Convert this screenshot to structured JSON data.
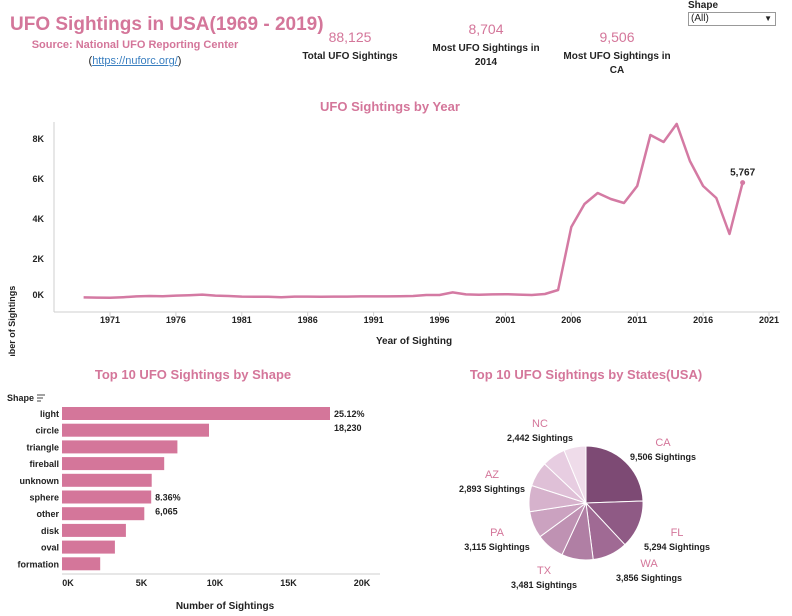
{
  "header": {
    "title": "UFO Sightings in USA(1969 - 2019)",
    "source": "Source: National UFO Reporting Center",
    "link_open": "(",
    "link_text": "https://nuforc.org/",
    "link_close": ")"
  },
  "kpis": [
    {
      "value": "88,125",
      "label": "Total UFO Sightings"
    },
    {
      "value": "8,704",
      "label": "Most UFO Sightings in 2014"
    },
    {
      "value": "9,506",
      "label": "Most UFO Sightings in CA"
    }
  ],
  "filter": {
    "label": "Shape",
    "selected": "(All)"
  },
  "colors": {
    "accent": "#d4769a",
    "bar": "#d4769a",
    "line": "#d47aa3",
    "link": "#3a7fc0"
  },
  "chart_data": [
    {
      "type": "line",
      "title": "UFO Sightings by Year",
      "xlabel": "Year of Sighting",
      "ylabel": "Number of Sightings",
      "x": [
        1969,
        1970,
        1971,
        1972,
        1973,
        1974,
        1975,
        1976,
        1977,
        1978,
        1979,
        1980,
        1981,
        1982,
        1983,
        1984,
        1985,
        1986,
        1987,
        1988,
        1989,
        1990,
        1991,
        1992,
        1993,
        1994,
        1995,
        1996,
        1997,
        1998,
        1999,
        2000,
        2001,
        2002,
        2003,
        2004,
        2005,
        2006,
        2007,
        2008,
        2009,
        2010,
        2011,
        2012,
        2013,
        2014,
        2015,
        2016,
        2017,
        2018,
        2019
      ],
      "values": [
        30,
        20,
        10,
        40,
        80,
        100,
        90,
        120,
        140,
        170,
        120,
        100,
        70,
        60,
        60,
        40,
        70,
        70,
        60,
        70,
        70,
        80,
        80,
        80,
        90,
        100,
        150,
        150,
        280,
        180,
        160,
        180,
        190,
        170,
        150,
        200,
        400,
        3550,
        4700,
        5250,
        4950,
        4750,
        5600,
        8150,
        7800,
        8704,
        6850,
        5600,
        5000,
        3200,
        5767
      ],
      "xticks": [
        "1971",
        "1976",
        "1981",
        "1986",
        "1991",
        "1996",
        "2001",
        "2006",
        "2011",
        "2016",
        "2021"
      ],
      "yticks": [
        "0K",
        "2K",
        "4K",
        "6K",
        "8K"
      ],
      "xlim": [
        1967,
        2021
      ],
      "ylim": [
        0,
        8800
      ],
      "annotation": "5,767"
    },
    {
      "type": "bar",
      "title": "Top 10 UFO Sightings by Shape",
      "category_header": "Shape",
      "xlabel": "Number of Sightings",
      "categories": [
        "light",
        "circle",
        "triangle",
        "fireball",
        "unknown",
        "sphere",
        "other",
        "disk",
        "oval",
        "formation"
      ],
      "values": [
        18230,
        10000,
        7850,
        6950,
        6100,
        6065,
        5600,
        4350,
        3600,
        2600
      ],
      "xticks": [
        "0K",
        "5K",
        "10K",
        "15K",
        "20K"
      ],
      "xlim": [
        0,
        20000
      ],
      "labels": [
        {
          "pct": "25.12%",
          "count": "18,230"
        },
        {
          "pct": "8.36%",
          "count": "6,065"
        }
      ]
    },
    {
      "type": "pie",
      "title": "Top 10 UFO Sightings by States(USA)",
      "slices": [
        {
          "state": "CA",
          "value": 9506,
          "label": "9,506 Sightings",
          "color": "#7d4a74"
        },
        {
          "state": "FL",
          "value": 5294,
          "label": "5,294 Sightings",
          "color": "#8f5a85"
        },
        {
          "state": "WA",
          "value": 3856,
          "label": "3,856 Sightings",
          "color": "#a06a94"
        },
        {
          "state": "TX",
          "value": 3481,
          "label": "3,481 Sightings",
          "color": "#b07fa4"
        },
        {
          "state": "PA",
          "value": 3115,
          "label": "3,115 Sightings",
          "color": "#bf92b3"
        },
        {
          "state": "",
          "value": 2950,
          "label": "",
          "color": "#cba2c0"
        },
        {
          "state": "AZ",
          "value": 2893,
          "label": "2,893 Sightings",
          "color": "#d6b2cc"
        },
        {
          "state": "",
          "value": 2750,
          "label": "",
          "color": "#dfc0d7"
        },
        {
          "state": "",
          "value": 2600,
          "label": "",
          "color": "#e7cde1"
        },
        {
          "state": "NC",
          "value": 2442,
          "label": "2,442 Sightings",
          "color": "#efdcea"
        }
      ]
    }
  ]
}
